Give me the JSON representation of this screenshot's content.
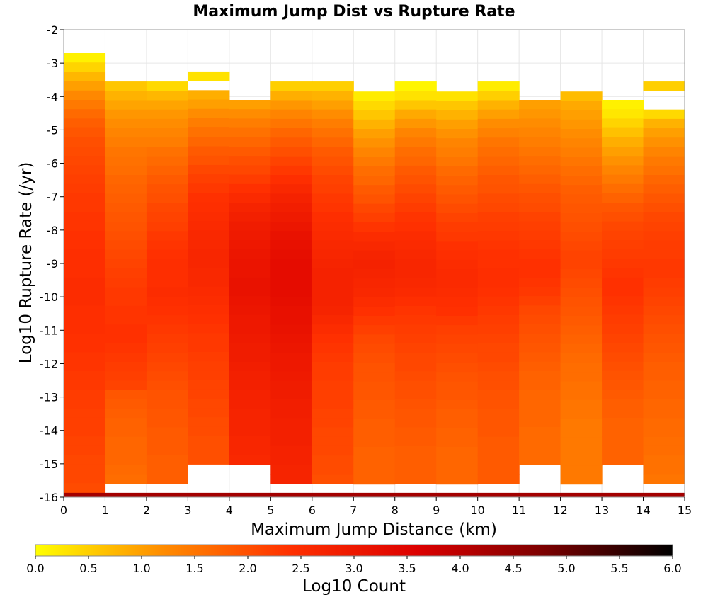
{
  "chart_data": {
    "type": "heatmap",
    "title": "Maximum Jump Dist vs Rupture Rate",
    "xlabel": "Maximum Jump Distance (km)",
    "ylabel": "Log10 Rupture Rate (/yr)",
    "xlim": [
      0,
      15
    ],
    "ylim": [
      -16,
      -2
    ],
    "x_ticks": [
      "0",
      "1",
      "2",
      "3",
      "4",
      "5",
      "6",
      "7",
      "8",
      "9",
      "10",
      "11",
      "12",
      "13",
      "14",
      "15"
    ],
    "y_ticks": [
      "-2",
      "-3",
      "-4",
      "-5",
      "-6",
      "-7",
      "-8",
      "-9",
      "-10",
      "-11",
      "-12",
      "-13",
      "-14",
      "-15",
      "-16"
    ],
    "x_bin_width": 1,
    "y_bin_height": 0.28,
    "colorbar": {
      "label": "Log10 Count",
      "range": [
        0,
        6
      ],
      "ticks": [
        "0.0",
        "0.5",
        "1.0",
        "1.5",
        "2.0",
        "2.5",
        "3.0",
        "3.5",
        "4.0",
        "4.5",
        "5.0",
        "5.5",
        "6.0"
      ],
      "colors": [
        "#ffff00",
        "#ff8c00",
        "#ff3000",
        "#dc0000",
        "#7a0000",
        "#000000"
      ]
    },
    "columns": [
      {
        "x_start": 0,
        "y_top": -2.7,
        "values": [
          0.15,
          0.45,
          0.75,
          1.0,
          1.25,
          1.45,
          1.65,
          1.8,
          1.9,
          2.0,
          2.05,
          2.1,
          2.15,
          2.2,
          2.25,
          2.3,
          2.3,
          2.35,
          2.35,
          2.4,
          2.4,
          2.45,
          2.45,
          2.45,
          2.5,
          2.5,
          2.5,
          2.45,
          2.45,
          2.45,
          2.4,
          2.4,
          2.35,
          2.35,
          2.3,
          2.3,
          2.25,
          2.25,
          2.2,
          2.2,
          2.2,
          2.15,
          2.15,
          2.1,
          2.1,
          2.1,
          2.05
        ]
      },
      {
        "x_start": 1,
        "y_top": -3.55,
        "values": [
          0.6,
          0.8,
          0.95,
          1.1,
          1.2,
          1.3,
          1.4,
          1.5,
          1.55,
          1.6,
          1.7,
          1.75,
          1.8,
          1.85,
          1.9,
          1.95,
          2.0,
          2.05,
          2.1,
          2.15,
          2.2,
          2.25,
          2.3,
          2.3,
          2.35,
          2.35,
          2.4,
          2.4,
          2.35,
          2.3,
          2.25,
          2.2,
          2.15,
          1.9,
          1.85,
          1.8,
          1.75,
          1.75,
          1.7,
          1.7,
          1.7,
          1.65,
          1.6
        ]
      },
      {
        "x_start": 2,
        "y_top": -3.55,
        "values": [
          0.4,
          0.75,
          0.95,
          1.1,
          1.2,
          1.3,
          1.4,
          1.55,
          1.65,
          1.75,
          1.85,
          1.95,
          2.0,
          2.1,
          2.15,
          2.2,
          2.3,
          2.35,
          2.4,
          2.45,
          2.45,
          2.45,
          2.5,
          2.45,
          2.4,
          2.35,
          2.3,
          2.25,
          2.2,
          2.15,
          2.1,
          2.05,
          2.0,
          1.95,
          1.95,
          1.9,
          1.9,
          1.85,
          1.85,
          1.85,
          1.8,
          1.8,
          1.8
        ]
      },
      {
        "x_start": 3,
        "y_top": -3.25,
        "values": [
          0.3,
          -1,
          0.85,
          1.0,
          1.2,
          1.4,
          1.55,
          1.7,
          1.85,
          1.95,
          2.1,
          2.2,
          2.3,
          2.4,
          2.45,
          2.5,
          2.55,
          2.6,
          2.6,
          2.65,
          2.65,
          2.6,
          2.6,
          2.55,
          2.5,
          2.45,
          2.4,
          2.35,
          2.3,
          2.3,
          2.25,
          2.2,
          2.2,
          2.15,
          2.15,
          2.1,
          2.1,
          2.05,
          2.05,
          2.0,
          2.0,
          2.0
        ]
      },
      {
        "x_start": 4,
        "y_top": -4.1,
        "values": [
          1.0,
          1.2,
          1.4,
          1.55,
          1.7,
          1.85,
          2.0,
          2.1,
          2.25,
          2.4,
          2.55,
          2.7,
          2.8,
          2.9,
          2.95,
          3.0,
          3.05,
          3.1,
          3.1,
          3.15,
          3.15,
          3.1,
          3.05,
          3.0,
          3.0,
          2.95,
          2.9,
          2.9,
          2.85,
          2.8,
          2.8,
          2.75,
          2.75,
          2.7,
          2.7,
          2.7,
          2.65,
          2.65,
          2.6
        ]
      },
      {
        "x_start": 5,
        "y_top": -3.55,
        "values": [
          0.5,
          0.85,
          1.1,
          1.3,
          1.5,
          1.7,
          1.85,
          2.0,
          2.15,
          2.3,
          2.45,
          2.6,
          2.75,
          2.85,
          2.95,
          3.05,
          3.15,
          3.2,
          3.25,
          3.3,
          3.3,
          3.3,
          3.3,
          3.25,
          3.2,
          3.2,
          3.15,
          3.1,
          3.05,
          3.0,
          3.0,
          2.95,
          2.9,
          2.9,
          2.85,
          2.85,
          2.8,
          2.8,
          2.8,
          2.75,
          2.75,
          2.7,
          2.7
        ]
      },
      {
        "x_start": 6,
        "y_top": -3.55,
        "values": [
          0.5,
          0.8,
          1.0,
          1.2,
          1.4,
          1.55,
          1.7,
          1.85,
          1.95,
          2.05,
          2.15,
          2.2,
          2.3,
          2.35,
          2.45,
          2.5,
          2.55,
          2.6,
          2.65,
          2.7,
          2.75,
          2.75,
          2.75,
          2.75,
          2.7,
          2.6,
          2.5,
          2.4,
          2.35,
          2.3,
          2.25,
          2.25,
          2.2,
          2.2,
          2.2,
          2.15,
          2.15,
          2.1,
          2.1,
          2.1,
          2.05,
          2.05,
          2.0
        ]
      },
      {
        "x_start": 7,
        "y_top": -3.85,
        "values": [
          0.2,
          0.4,
          0.6,
          0.8,
          1.0,
          1.15,
          1.3,
          1.45,
          1.6,
          1.7,
          1.85,
          1.95,
          2.1,
          2.2,
          2.35,
          2.5,
          2.6,
          2.7,
          2.75,
          2.7,
          2.65,
          2.6,
          2.5,
          2.4,
          2.3,
          2.2,
          2.1,
          2.05,
          2.0,
          1.95,
          1.95,
          1.9,
          1.9,
          1.85,
          1.85,
          1.8,
          1.8,
          1.8,
          1.75,
          1.75,
          1.75,
          1.75
        ]
      },
      {
        "x_start": 8,
        "y_top": -3.55,
        "values": [
          0.1,
          0.3,
          0.6,
          0.9,
          1.1,
          1.3,
          1.45,
          1.6,
          1.7,
          1.85,
          1.95,
          2.05,
          2.15,
          2.25,
          2.35,
          2.4,
          2.5,
          2.55,
          2.6,
          2.65,
          2.65,
          2.6,
          2.55,
          2.45,
          2.35,
          2.3,
          2.25,
          2.2,
          2.15,
          2.1,
          2.1,
          2.05,
          2.0,
          2.0,
          1.95,
          1.9,
          1.9,
          1.85,
          1.85,
          1.8,
          1.8,
          1.8,
          1.8
        ]
      },
      {
        "x_start": 9,
        "y_top": -3.85,
        "values": [
          0.3,
          0.6,
          0.8,
          1.0,
          1.15,
          1.3,
          1.4,
          1.5,
          1.65,
          1.75,
          1.85,
          1.95,
          2.05,
          2.15,
          2.25,
          2.3,
          2.4,
          2.45,
          2.5,
          2.55,
          2.55,
          2.5,
          2.45,
          2.4,
          2.3,
          2.2,
          2.15,
          2.1,
          2.05,
          2.0,
          1.95,
          1.9,
          1.9,
          1.85,
          1.8,
          1.8,
          1.75,
          1.75,
          1.7,
          1.7,
          1.7,
          1.7
        ]
      },
      {
        "x_start": 10,
        "y_top": -3.55,
        "values": [
          0.2,
          0.5,
          0.8,
          1.0,
          1.2,
          1.35,
          1.5,
          1.6,
          1.7,
          1.8,
          1.9,
          1.95,
          2.05,
          2.1,
          2.2,
          2.25,
          2.3,
          2.35,
          2.4,
          2.4,
          2.45,
          2.45,
          2.4,
          2.35,
          2.3,
          2.25,
          2.2,
          2.15,
          2.1,
          2.1,
          2.05,
          2.0,
          2.0,
          1.95,
          1.95,
          1.9,
          1.9,
          1.9,
          1.85,
          1.85,
          1.85,
          1.85,
          1.85
        ]
      },
      {
        "x_start": 11,
        "y_top": -4.1,
        "values": [
          1.0,
          1.1,
          1.2,
          1.3,
          1.4,
          1.5,
          1.6,
          1.7,
          1.8,
          1.9,
          2.0,
          2.05,
          2.15,
          2.2,
          2.25,
          2.3,
          2.35,
          2.4,
          2.4,
          2.35,
          2.3,
          2.2,
          2.1,
          2.05,
          2.0,
          1.95,
          1.9,
          1.85,
          1.8,
          1.75,
          1.75,
          1.7,
          1.7,
          1.7,
          1.7,
          1.65,
          1.65,
          1.65,
          1.65
        ]
      },
      {
        "x_start": 12,
        "y_top": -3.85,
        "values": [
          0.7,
          0.9,
          1.0,
          1.1,
          1.2,
          1.3,
          1.4,
          1.5,
          1.6,
          1.7,
          1.8,
          1.85,
          1.9,
          1.95,
          2.0,
          2.05,
          2.1,
          2.15,
          2.15,
          2.1,
          2.05,
          2.0,
          1.95,
          1.9,
          1.85,
          1.8,
          1.75,
          1.7,
          1.65,
          1.6,
          1.6,
          1.55,
          1.55,
          1.5,
          1.5,
          1.45,
          1.45,
          1.45,
          1.45,
          1.45,
          1.45,
          1.45
        ]
      },
      {
        "x_start": 13,
        "y_top": -4.1,
        "values": [
          0.15,
          0.25,
          0.45,
          0.65,
          0.85,
          1.0,
          1.15,
          1.3,
          1.45,
          1.6,
          1.75,
          1.9,
          2.0,
          2.1,
          2.15,
          2.2,
          2.25,
          2.3,
          2.35,
          2.4,
          2.4,
          2.35,
          2.3,
          2.25,
          2.2,
          2.15,
          2.1,
          2.05,
          2.0,
          1.95,
          1.9,
          1.85,
          1.8,
          1.8,
          1.75,
          1.75,
          1.75,
          1.75,
          1.75
        ]
      },
      {
        "x_start": 14,
        "y_top": -3.55,
        "values": [
          0.5,
          -1,
          -1,
          0.4,
          0.8,
          1.0,
          1.15,
          1.3,
          1.45,
          1.55,
          1.7,
          1.8,
          1.9,
          2.0,
          2.1,
          2.15,
          2.2,
          2.25,
          2.25,
          2.3,
          2.3,
          2.25,
          2.2,
          2.15,
          2.1,
          2.05,
          2.0,
          1.95,
          1.9,
          1.85,
          1.8,
          1.8,
          1.75,
          1.75,
          1.7,
          1.7,
          1.65,
          1.65,
          1.6,
          1.6,
          1.55,
          1.55,
          1.5
        ]
      }
    ],
    "bottom_row": {
      "y": [
        -16,
        -15.87
      ],
      "value": 4.3
    }
  }
}
